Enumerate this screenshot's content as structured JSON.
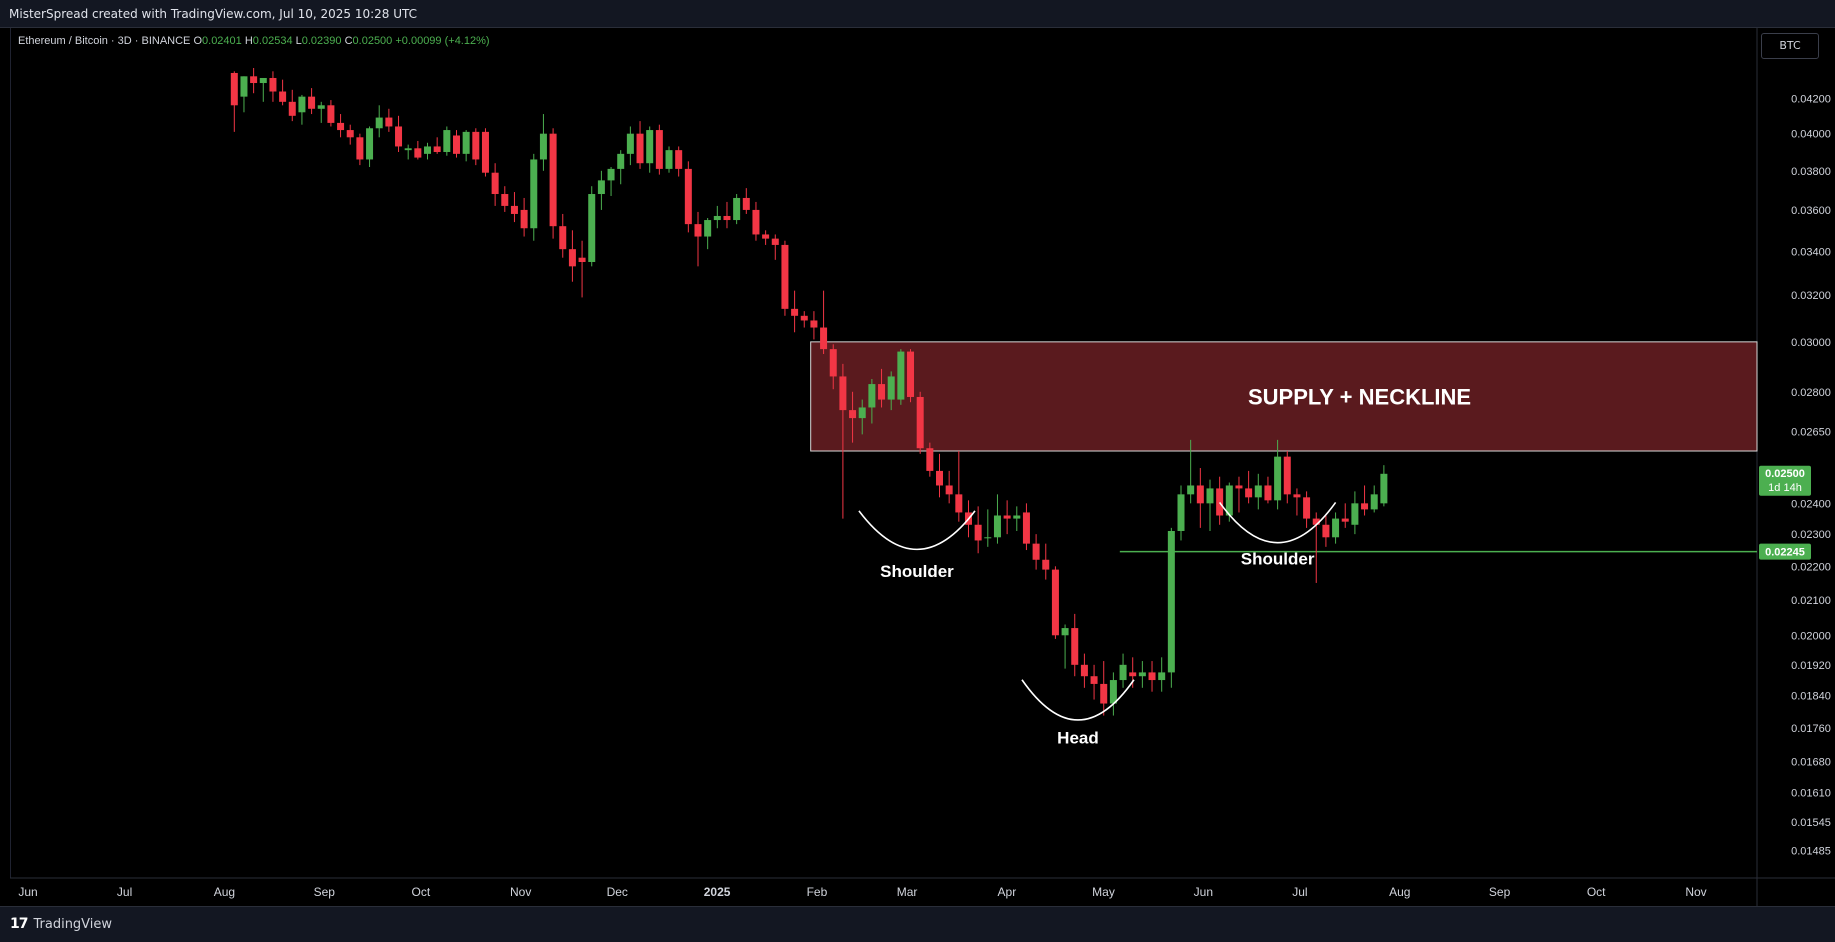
{
  "header": {
    "attribution": "MisterSpread created with TradingView.com, Jul 10, 2025 10:28 UTC"
  },
  "footer": {
    "logo_text": "TradingView",
    "logo_mark": "17"
  },
  "currency_button": "BTC",
  "colors": {
    "up": "#4caf50",
    "down": "#f23645",
    "supply_zone": "#5a1a1e",
    "neckline": "#4caf50",
    "background": "#000000"
  },
  "chart_data": {
    "type": "candlestick",
    "symbol_line": {
      "symbol": "Ethereum / Bitcoin · 3D · BINANCE",
      "open_label": "O",
      "open": "0.02401",
      "high_label": "H",
      "high": "0.02534",
      "low_label": "L",
      "low": "0.02390",
      "close_label": "C",
      "close": "0.02500",
      "change": "+0.00099 (+4.12%)"
    },
    "x_ticks": [
      "Jun",
      "Jul",
      "Aug",
      "Sep",
      "Oct",
      "Nov",
      "Dec",
      "2025",
      "Feb",
      "Mar",
      "Apr",
      "May",
      "Jun",
      "Jul",
      "Aug",
      "Sep",
      "Oct",
      "Nov"
    ],
    "y_ticks": [
      "0.04200",
      "0.04000",
      "0.03800",
      "0.03600",
      "0.03400",
      "0.03200",
      "0.03000",
      "0.02800",
      "0.02650",
      "0.02400",
      "0.02300",
      "0.02200",
      "0.02100",
      "0.02000",
      "0.01920",
      "0.01840",
      "0.01760",
      "0.01680",
      "0.01610",
      "0.01545",
      "0.01485"
    ],
    "y_scale": "log",
    "ylim": [
      0.0145,
      0.0438
    ],
    "price_tags": [
      {
        "value": "0.02500",
        "sub": "1d 14h",
        "color": "#4caf50"
      },
      {
        "value": "0.02245",
        "color": "#4caf50"
      }
    ],
    "supply_zone": {
      "label": "SUPPLY + NECKLINE",
      "start": "Jan 31, 2025",
      "low": 0.0258,
      "high": 0.03
    },
    "neckline": {
      "start": "May 7, 2025",
      "value": 0.02245
    },
    "annotations": [
      {
        "text": "Shoulder",
        "date": "Mar 5, 2025",
        "value": 0.02235
      },
      {
        "text": "Head",
        "date": "Apr 24, 2025",
        "value": 0.01765
      },
      {
        "text": "Shoulder",
        "date": "Jun 25, 2025",
        "value": 0.02255
      }
    ],
    "candles": [
      {
        "d": "Aug 5, 2024",
        "o": 0.0435,
        "h": 0.0436,
        "l": 0.0401,
        "c": 0.0416
      },
      {
        "d": "Aug 8, 2024",
        "o": 0.0421,
        "h": 0.0433,
        "l": 0.0412,
        "c": 0.0433
      },
      {
        "d": "Aug 11, 2024",
        "o": 0.0433,
        "h": 0.0438,
        "l": 0.0423,
        "c": 0.0429
      },
      {
        "d": "Aug 14, 2024",
        "o": 0.0429,
        "h": 0.0432,
        "l": 0.0418,
        "c": 0.0432
      },
      {
        "d": "Aug 17, 2024",
        "o": 0.0432,
        "h": 0.0436,
        "l": 0.0418,
        "c": 0.0424
      },
      {
        "d": "Aug 20, 2024",
        "o": 0.0424,
        "h": 0.0431,
        "l": 0.0416,
        "c": 0.0418
      },
      {
        "d": "Aug 23, 2024",
        "o": 0.0418,
        "h": 0.0425,
        "l": 0.0407,
        "c": 0.041
      },
      {
        "d": "Aug 26, 2024",
        "o": 0.0412,
        "h": 0.0422,
        "l": 0.0405,
        "c": 0.0421
      },
      {
        "d": "Aug 29, 2024",
        "o": 0.0421,
        "h": 0.0426,
        "l": 0.0411,
        "c": 0.0414
      },
      {
        "d": "Sep 1, 2024",
        "o": 0.0414,
        "h": 0.0418,
        "l": 0.0406,
        "c": 0.0416
      },
      {
        "d": "Sep 4, 2024",
        "o": 0.0416,
        "h": 0.0419,
        "l": 0.0404,
        "c": 0.0406
      },
      {
        "d": "Sep 7, 2024",
        "o": 0.0406,
        "h": 0.0411,
        "l": 0.0398,
        "c": 0.0402
      },
      {
        "d": "Sep 10, 2024",
        "o": 0.0402,
        "h": 0.0405,
        "l": 0.0394,
        "c": 0.0398
      },
      {
        "d": "Sep 13, 2024",
        "o": 0.0398,
        "h": 0.04,
        "l": 0.0383,
        "c": 0.0386
      },
      {
        "d": "Sep 16, 2024",
        "o": 0.0386,
        "h": 0.0404,
        "l": 0.0382,
        "c": 0.0403
      },
      {
        "d": "Sep 19, 2024",
        "o": 0.0403,
        "h": 0.0416,
        "l": 0.0398,
        "c": 0.0409
      },
      {
        "d": "Sep 22, 2024",
        "o": 0.0409,
        "h": 0.0414,
        "l": 0.0401,
        "c": 0.0404
      },
      {
        "d": "Sep 25, 2024",
        "o": 0.0404,
        "h": 0.041,
        "l": 0.039,
        "c": 0.0393
      },
      {
        "d": "Sep 28, 2024",
        "o": 0.0391,
        "h": 0.0394,
        "l": 0.0386,
        "c": 0.0392
      },
      {
        "d": "Oct 1, 2024",
        "o": 0.0392,
        "h": 0.0396,
        "l": 0.0386,
        "c": 0.0387
      },
      {
        "d": "Oct 4, 2024",
        "o": 0.0389,
        "h": 0.0395,
        "l": 0.0386,
        "c": 0.0393
      },
      {
        "d": "Oct 7, 2024",
        "o": 0.0393,
        "h": 0.0398,
        "l": 0.0389,
        "c": 0.039
      },
      {
        "d": "Oct 10, 2024",
        "o": 0.039,
        "h": 0.0404,
        "l": 0.0388,
        "c": 0.0402
      },
      {
        "d": "Oct 13, 2024",
        "o": 0.0399,
        "h": 0.0402,
        "l": 0.0387,
        "c": 0.0389
      },
      {
        "d": "Oct 16, 2024",
        "o": 0.0389,
        "h": 0.0402,
        "l": 0.0385,
        "c": 0.0401
      },
      {
        "d": "Oct 19, 2024",
        "o": 0.0401,
        "h": 0.0403,
        "l": 0.0383,
        "c": 0.0386
      },
      {
        "d": "Oct 22, 2024",
        "o": 0.0401,
        "h": 0.0403,
        "l": 0.0377,
        "c": 0.0379
      },
      {
        "d": "Oct 25, 2024",
        "o": 0.0379,
        "h": 0.0384,
        "l": 0.0362,
        "c": 0.0368
      },
      {
        "d": "Oct 28, 2024",
        "o": 0.0368,
        "h": 0.0372,
        "l": 0.0359,
        "c": 0.0362
      },
      {
        "d": "Oct 31, 2024",
        "o": 0.0362,
        "h": 0.0369,
        "l": 0.0354,
        "c": 0.0358
      },
      {
        "d": "Nov 3, 2024",
        "o": 0.036,
        "h": 0.0366,
        "l": 0.0347,
        "c": 0.0351
      },
      {
        "d": "Nov 6, 2024",
        "o": 0.0351,
        "h": 0.0389,
        "l": 0.0345,
        "c": 0.0386
      },
      {
        "d": "Nov 9, 2024",
        "o": 0.0386,
        "h": 0.0411,
        "l": 0.038,
        "c": 0.04
      },
      {
        "d": "Nov 12, 2024",
        "o": 0.04,
        "h": 0.0403,
        "l": 0.0346,
        "c": 0.0352
      },
      {
        "d": "Nov 15, 2024",
        "o": 0.0352,
        "h": 0.0358,
        "l": 0.0337,
        "c": 0.0341
      },
      {
        "d": "Nov 18, 2024",
        "o": 0.0341,
        "h": 0.035,
        "l": 0.0326,
        "c": 0.0333
      },
      {
        "d": "Nov 21, 2024",
        "o": 0.0337,
        "h": 0.0345,
        "l": 0.0319,
        "c": 0.0335
      },
      {
        "d": "Nov 24, 2024",
        "o": 0.0335,
        "h": 0.0372,
        "l": 0.0333,
        "c": 0.0368
      },
      {
        "d": "Nov 27, 2024",
        "o": 0.0368,
        "h": 0.038,
        "l": 0.036,
        "c": 0.0375
      },
      {
        "d": "Nov 30, 2024",
        "o": 0.0375,
        "h": 0.0382,
        "l": 0.0367,
        "c": 0.0381
      },
      {
        "d": "Dec 3, 2024",
        "o": 0.0381,
        "h": 0.0391,
        "l": 0.0373,
        "c": 0.0389
      },
      {
        "d": "Dec 6, 2024",
        "o": 0.0389,
        "h": 0.0404,
        "l": 0.0383,
        "c": 0.04
      },
      {
        "d": "Dec 9, 2024",
        "o": 0.04,
        "h": 0.0407,
        "l": 0.0381,
        "c": 0.0384
      },
      {
        "d": "Dec 12, 2024",
        "o": 0.0384,
        "h": 0.0404,
        "l": 0.0379,
        "c": 0.0402
      },
      {
        "d": "Dec 15, 2024",
        "o": 0.0402,
        "h": 0.0405,
        "l": 0.0378,
        "c": 0.0381
      },
      {
        "d": "Dec 18, 2024",
        "o": 0.0381,
        "h": 0.0393,
        "l": 0.0379,
        "c": 0.0391
      },
      {
        "d": "Dec 21, 2024",
        "o": 0.0391,
        "h": 0.0393,
        "l": 0.0377,
        "c": 0.0381
      },
      {
        "d": "Dec 24, 2024",
        "o": 0.0381,
        "h": 0.0385,
        "l": 0.0349,
        "c": 0.0353
      },
      {
        "d": "Dec 27, 2024",
        "o": 0.0353,
        "h": 0.0359,
        "l": 0.0333,
        "c": 0.0347
      },
      {
        "d": "Dec 30, 2024",
        "o": 0.0347,
        "h": 0.0356,
        "l": 0.0341,
        "c": 0.0355
      },
      {
        "d": "Jan 2, 2025",
        "o": 0.0355,
        "h": 0.0362,
        "l": 0.0351,
        "c": 0.0357
      },
      {
        "d": "Jan 5, 2025",
        "o": 0.0357,
        "h": 0.0364,
        "l": 0.0351,
        "c": 0.0355
      },
      {
        "d": "Jan 8, 2025",
        "o": 0.0355,
        "h": 0.0368,
        "l": 0.0353,
        "c": 0.0366
      },
      {
        "d": "Jan 11, 2025",
        "o": 0.0366,
        "h": 0.0371,
        "l": 0.0358,
        "c": 0.036
      },
      {
        "d": "Jan 14, 2025",
        "o": 0.036,
        "h": 0.0364,
        "l": 0.0345,
        "c": 0.0348
      },
      {
        "d": "Jan 17, 2025",
        "o": 0.0348,
        "h": 0.035,
        "l": 0.0343,
        "c": 0.0346
      },
      {
        "d": "Jan 20, 2025",
        "o": 0.0346,
        "h": 0.0348,
        "l": 0.0336,
        "c": 0.0343
      },
      {
        "d": "Jan 23, 2025",
        "o": 0.0343,
        "h": 0.0345,
        "l": 0.0311,
        "c": 0.0314
      },
      {
        "d": "Jan 26, 2025",
        "o": 0.0314,
        "h": 0.0322,
        "l": 0.0304,
        "c": 0.0311
      },
      {
        "d": "Jan 29, 2025",
        "o": 0.0311,
        "h": 0.0313,
        "l": 0.0306,
        "c": 0.0309
      },
      {
        "d": "Feb 1, 2025",
        "o": 0.0309,
        "h": 0.0313,
        "l": 0.0301,
        "c": 0.0306
      },
      {
        "d": "Feb 4, 2025",
        "o": 0.0306,
        "h": 0.0322,
        "l": 0.0295,
        "c": 0.0297
      },
      {
        "d": "Feb 7, 2025",
        "o": 0.0297,
        "h": 0.0299,
        "l": 0.0281,
        "c": 0.0286
      },
      {
        "d": "Feb 10, 2025",
        "o": 0.0286,
        "h": 0.0291,
        "l": 0.0235,
        "c": 0.0273
      },
      {
        "d": "Feb 13, 2025",
        "o": 0.0273,
        "h": 0.028,
        "l": 0.0261,
        "c": 0.027
      },
      {
        "d": "Feb 16, 2025",
        "o": 0.027,
        "h": 0.0277,
        "l": 0.0264,
        "c": 0.0274
      },
      {
        "d": "Feb 19, 2025",
        "o": 0.0274,
        "h": 0.0285,
        "l": 0.0268,
        "c": 0.0283
      },
      {
        "d": "Feb 22, 2025",
        "o": 0.0283,
        "h": 0.0289,
        "l": 0.0274,
        "c": 0.0277
      },
      {
        "d": "Feb 25, 2025",
        "o": 0.0277,
        "h": 0.0288,
        "l": 0.0273,
        "c": 0.0286
      },
      {
        "d": "Feb 28, 2025",
        "o": 0.0277,
        "h": 0.0297,
        "l": 0.0275,
        "c": 0.0296
      },
      {
        "d": "Mar 3, 2025",
        "o": 0.0296,
        "h": 0.0297,
        "l": 0.0276,
        "c": 0.0278
      },
      {
        "d": "Mar 6, 2025",
        "o": 0.0278,
        "h": 0.028,
        "l": 0.0257,
        "c": 0.0259
      },
      {
        "d": "Mar 9, 2025",
        "o": 0.0259,
        "h": 0.0261,
        "l": 0.0249,
        "c": 0.0251
      },
      {
        "d": "Mar 12, 2025",
        "o": 0.0251,
        "h": 0.0257,
        "l": 0.0242,
        "c": 0.0246
      },
      {
        "d": "Mar 15, 2025",
        "o": 0.0246,
        "h": 0.0251,
        "l": 0.024,
        "c": 0.0243
      },
      {
        "d": "Mar 18, 2025",
        "o": 0.0243,
        "h": 0.0258,
        "l": 0.0234,
        "c": 0.0237
      },
      {
        "d": "Mar 21, 2025",
        "o": 0.0237,
        "h": 0.0241,
        "l": 0.0229,
        "c": 0.0233
      },
      {
        "d": "Mar 24, 2025",
        "o": 0.0233,
        "h": 0.0239,
        "l": 0.0224,
        "c": 0.0228
      },
      {
        "d": "Mar 27, 2025",
        "o": 0.0229,
        "h": 0.0238,
        "l": 0.0226,
        "c": 0.0229
      },
      {
        "d": "Mar 30, 2025",
        "o": 0.0229,
        "h": 0.0243,
        "l": 0.0227,
        "c": 0.0236
      },
      {
        "d": "Apr 2, 2025",
        "o": 0.0236,
        "h": 0.0241,
        "l": 0.023,
        "c": 0.0235
      },
      {
        "d": "Apr 5, 2025",
        "o": 0.0235,
        "h": 0.0239,
        "l": 0.0231,
        "c": 0.0236
      },
      {
        "d": "Apr 8, 2025",
        "o": 0.0237,
        "h": 0.024,
        "l": 0.0225,
        "c": 0.0227
      },
      {
        "d": "Apr 11, 2025",
        "o": 0.0227,
        "h": 0.023,
        "l": 0.0219,
        "c": 0.0222
      },
      {
        "d": "Apr 14, 2025",
        "o": 0.0222,
        "h": 0.0227,
        "l": 0.0216,
        "c": 0.0219
      },
      {
        "d": "Apr 17, 2025",
        "o": 0.0219,
        "h": 0.022,
        "l": 0.0199,
        "c": 0.02
      },
      {
        "d": "Apr 20, 2025",
        "o": 0.02,
        "h": 0.0203,
        "l": 0.0191,
        "c": 0.0202
      },
      {
        "d": "Apr 23, 2025",
        "o": 0.0202,
        "h": 0.0206,
        "l": 0.0189,
        "c": 0.0192
      },
      {
        "d": "Apr 26, 2025",
        "o": 0.0192,
        "h": 0.0195,
        "l": 0.0186,
        "c": 0.0189
      },
      {
        "d": "Apr 29, 2025",
        "o": 0.0189,
        "h": 0.0192,
        "l": 0.0183,
        "c": 0.0187
      },
      {
        "d": "May 2, 2025",
        "o": 0.0187,
        "h": 0.0193,
        "l": 0.0179,
        "c": 0.0182
      },
      {
        "d": "May 5, 2025",
        "o": 0.0182,
        "h": 0.019,
        "l": 0.0179,
        "c": 0.0188
      },
      {
        "d": "May 8, 2025",
        "o": 0.0188,
        "h": 0.0195,
        "l": 0.0186,
        "c": 0.0192
      },
      {
        "d": "May 11, 2025",
        "o": 0.019,
        "h": 0.0194,
        "l": 0.0186,
        "c": 0.0189
      },
      {
        "d": "May 14, 2025",
        "o": 0.0189,
        "h": 0.0193,
        "l": 0.0186,
        "c": 0.019
      },
      {
        "d": "May 17, 2025",
        "o": 0.019,
        "h": 0.0193,
        "l": 0.0185,
        "c": 0.0188
      },
      {
        "d": "May 20, 2025",
        "o": 0.0188,
        "h": 0.0194,
        "l": 0.0185,
        "c": 0.019
      },
      {
        "d": "May 23, 2025",
        "o": 0.019,
        "h": 0.0232,
        "l": 0.0186,
        "c": 0.0231
      },
      {
        "d": "May 26, 2025",
        "o": 0.0231,
        "h": 0.0246,
        "l": 0.0228,
        "c": 0.0243
      },
      {
        "d": "May 29, 2025",
        "o": 0.0243,
        "h": 0.0262,
        "l": 0.024,
        "c": 0.0246
      },
      {
        "d": "Jun 1, 2025",
        "o": 0.0246,
        "h": 0.0252,
        "l": 0.0232,
        "c": 0.024
      },
      {
        "d": "Jun 4, 2025",
        "o": 0.024,
        "h": 0.0248,
        "l": 0.0231,
        "c": 0.0245
      },
      {
        "d": "Jun 7, 2025",
        "o": 0.0245,
        "h": 0.0249,
        "l": 0.0233,
        "c": 0.0236
      },
      {
        "d": "Jun 10, 2025",
        "o": 0.0236,
        "h": 0.0247,
        "l": 0.0234,
        "c": 0.0246
      },
      {
        "d": "Jun 13, 2025",
        "o": 0.0246,
        "h": 0.0249,
        "l": 0.0237,
        "c": 0.0245
      },
      {
        "d": "Jun 16, 2025",
        "o": 0.0245,
        "h": 0.0251,
        "l": 0.024,
        "c": 0.0242
      },
      {
        "d": "Jun 19, 2025",
        "o": 0.0242,
        "h": 0.025,
        "l": 0.0238,
        "c": 0.0246
      },
      {
        "d": "Jun 22, 2025",
        "o": 0.0246,
        "h": 0.0249,
        "l": 0.024,
        "c": 0.0241
      },
      {
        "d": "Jun 25, 2025",
        "o": 0.0241,
        "h": 0.0262,
        "l": 0.0238,
        "c": 0.0256
      },
      {
        "d": "Jun 28, 2025",
        "o": 0.0256,
        "h": 0.0258,
        "l": 0.024,
        "c": 0.0243
      },
      {
        "d": "Jul 1, 2025",
        "o": 0.0243,
        "h": 0.0245,
        "l": 0.0236,
        "c": 0.0242
      },
      {
        "d": "Jul 4, 2025",
        "o": 0.0242,
        "h": 0.0244,
        "l": 0.0232,
        "c": 0.0235
      },
      {
        "d": "Jul 7, 2025",
        "o": 0.0235,
        "h": 0.0237,
        "l": 0.0215,
        "c": 0.0233
      },
      {
        "d": "Jul 10, 2025",
        "o": 0.0233,
        "h": 0.0236,
        "l": 0.0226,
        "c": 0.0229
      },
      {
        "d": "Jul 13, 2025",
        "o": 0.0229,
        "h": 0.0237,
        "l": 0.0227,
        "c": 0.0235
      },
      {
        "d": "Jul 16, 2025",
        "o": 0.0235,
        "h": 0.024,
        "l": 0.0232,
        "c": 0.0234
      },
      {
        "d": "Jul 19, 2025",
        "o": 0.0233,
        "h": 0.0244,
        "l": 0.023,
        "c": 0.024
      },
      {
        "d": "Jul 22, 2025",
        "o": 0.024,
        "h": 0.0246,
        "l": 0.0236,
        "c": 0.0238
      },
      {
        "d": "Jul 25, 2025",
        "o": 0.0238,
        "h": 0.0246,
        "l": 0.0237,
        "c": 0.0243
      },
      {
        "d": "Jul 28, 2025",
        "o": 0.024,
        "h": 0.0253,
        "l": 0.0239,
        "c": 0.025
      }
    ]
  }
}
